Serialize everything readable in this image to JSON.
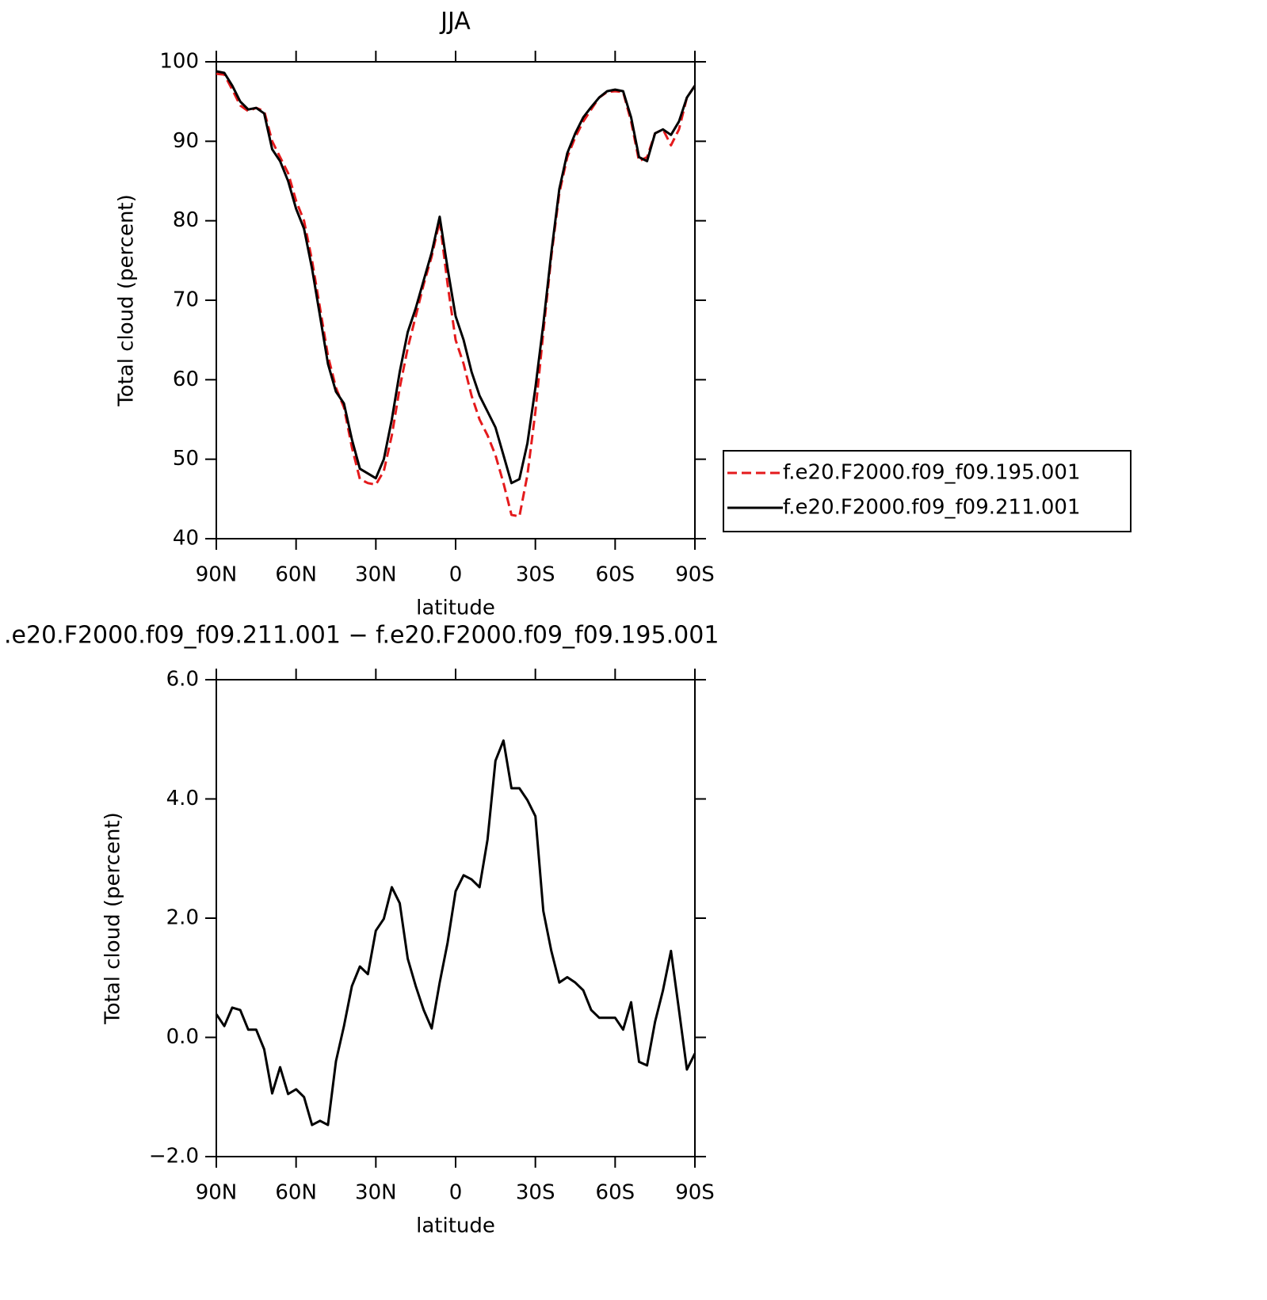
{
  "chart_data": [
    {
      "type": "line",
      "title": "JJA",
      "xlabel": "latitude",
      "ylabel": "Total cloud (percent)",
      "x": [
        90,
        87,
        84,
        81,
        78,
        75,
        72,
        69,
        66,
        63,
        60,
        57,
        54,
        51,
        48,
        45,
        42,
        39,
        36,
        33,
        30,
        27,
        24,
        21,
        18,
        15,
        12,
        9,
        6,
        3,
        0,
        -3,
        -6,
        -9,
        -12,
        -15,
        -18,
        -21,
        -24,
        -27,
        -30,
        -33,
        -36,
        -39,
        -42,
        -45,
        -48,
        -51,
        -54,
        -57,
        -60,
        -63,
        -66,
        -69,
        -72,
        -75,
        -78,
        -81,
        -84,
        -87,
        -90
      ],
      "series": [
        {
          "name": "f.e20.F2000.f09_f09.195.001",
          "color": "#e41a1c",
          "dashed": true,
          "values": [
            98.5,
            98.4,
            96.5,
            94.5,
            93.8,
            94.2,
            93.8,
            90,
            88,
            86,
            82.5,
            80,
            75,
            69,
            63,
            59,
            56.5,
            51.5,
            47.5,
            47,
            46.8,
            48.5,
            53,
            59,
            64,
            68,
            72,
            75.5,
            80,
            72,
            65,
            62,
            58,
            55,
            53,
            50.5,
            47,
            43,
            42.8,
            48,
            56,
            66,
            75.5,
            83.5,
            88,
            90.5,
            92.5,
            94,
            95.5,
            96.2,
            96.3,
            96.2,
            92.5,
            87.5,
            88,
            91,
            91.5,
            89.5,
            91.5,
            95.5,
            97
          ]
        },
        {
          "name": "f.e20.F2000.f09_f09.211.001",
          "color": "#000000",
          "dashed": false,
          "values": [
            98.8,
            98.6,
            97,
            95,
            94,
            94.2,
            93.5,
            89,
            87.5,
            85,
            81.5,
            79,
            74,
            68,
            62,
            58.5,
            57,
            52.5,
            48.8,
            48.2,
            47.6,
            50,
            55,
            61,
            66,
            69,
            72.5,
            76,
            80.5,
            74,
            68,
            65,
            61,
            58,
            56,
            54,
            50.5,
            47,
            47.5,
            52,
            59,
            67,
            76,
            84,
            88.5,
            91,
            93,
            94.3,
            95.5,
            96.3,
            96.5,
            96.3,
            93,
            88,
            87.5,
            91,
            91.5,
            90.8,
            92.5,
            95.5,
            97
          ]
        }
      ],
      "xlim": [
        90,
        -90
      ],
      "xticks": [
        {
          "value": 90,
          "label": "90N"
        },
        {
          "value": 60,
          "label": "60N"
        },
        {
          "value": 30,
          "label": "30N"
        },
        0,
        {
          "value": -30,
          "label": "30S"
        },
        {
          "value": -60,
          "label": "60S"
        },
        {
          "value": -90,
          "label": "90S"
        }
      ],
      "ylim": [
        40,
        100
      ],
      "yticks": [
        40,
        50,
        60,
        70,
        80,
        90,
        100
      ],
      "legend": "right"
    },
    {
      "type": "line",
      "title": ".e20.F2000.f09_f09.211.001 − f.e20.F2000.f09_f09.195.001",
      "xlabel": "latitude",
      "ylabel": "Total cloud (percent)",
      "x": [
        90,
        87,
        84,
        81,
        78,
        75,
        72,
        69,
        66,
        63,
        60,
        57,
        54,
        51,
        48,
        45,
        42,
        39,
        36,
        33,
        30,
        27,
        24,
        21,
        18,
        15,
        12,
        9,
        6,
        3,
        0,
        -3,
        -6,
        -9,
        -12,
        -15,
        -18,
        -21,
        -24,
        -27,
        -30,
        -33,
        -36,
        -39,
        -42,
        -45,
        -48,
        -51,
        -54,
        -57,
        -60,
        -63,
        -66,
        -69,
        -72,
        -75,
        -78,
        -81,
        -84,
        -87,
        -90
      ],
      "series": [
        {
          "color": "#000000",
          "dashed": false,
          "values": [
            0.39,
            0.19,
            0.5,
            0.46,
            0.13,
            0.13,
            -0.2,
            -0.94,
            -0.5,
            -0.95,
            -0.87,
            -1.0,
            -1.47,
            -1.4,
            -1.47,
            -0.4,
            0.19,
            0.86,
            1.19,
            1.06,
            1.79,
            1.99,
            2.52,
            2.25,
            1.32,
            0.86,
            0.46,
            0.15,
            0.92,
            1.59,
            2.45,
            2.72,
            2.65,
            2.52,
            3.32,
            4.64,
            4.98,
            4.18,
            4.18,
            3.98,
            3.71,
            2.12,
            1.45,
            0.92,
            1.01,
            0.92,
            0.79,
            0.46,
            0.33,
            0.33,
            0.33,
            0.13,
            0.59,
            -0.41,
            -0.47,
            0.26,
            0.79,
            1.45,
            0.46,
            -0.54,
            -0.27
          ]
        }
      ],
      "xlim": [
        90,
        -90
      ],
      "xticks": [
        {
          "value": 90,
          "label": "90N"
        },
        {
          "value": 60,
          "label": "60N"
        },
        {
          "value": 30,
          "label": "30N"
        },
        0,
        {
          "value": -30,
          "label": "30S"
        },
        {
          "value": -60,
          "label": "60S"
        },
        {
          "value": -90,
          "label": "90S"
        }
      ],
      "ylim": [
        -2,
        6
      ],
      "yticks": [
        {
          "value": -2,
          "label": "−2.0"
        },
        {
          "value": 0,
          "label": "0.0"
        },
        {
          "value": 2,
          "label": "2.0"
        },
        {
          "value": 4,
          "label": "4.0"
        },
        {
          "value": 6,
          "label": "6.0"
        }
      ]
    }
  ]
}
